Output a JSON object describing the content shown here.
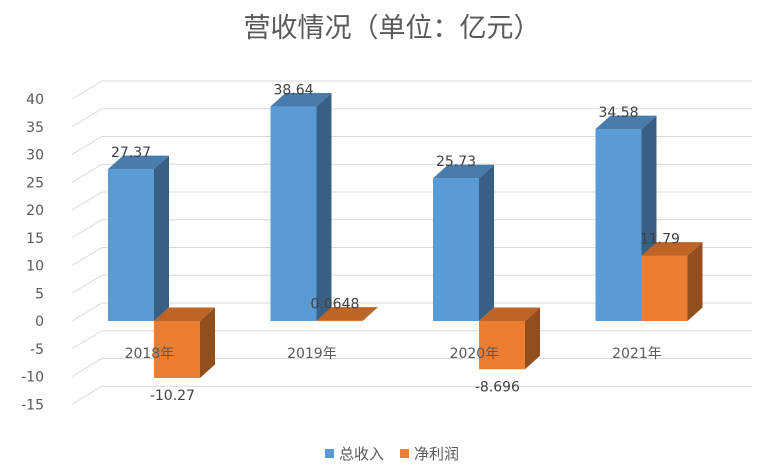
{
  "chart_data": {
    "type": "bar",
    "title": "营收情况（单位：亿元）",
    "categories": [
      "2018年",
      "2019年",
      "2020年",
      "2021年"
    ],
    "series": [
      {
        "name": "总收入",
        "values": [
          27.37,
          38.64,
          25.73,
          34.58
        ],
        "labels": [
          "27.37",
          "38.64",
          "25.73",
          "34.58"
        ],
        "color": "#5B9BD5"
      },
      {
        "name": "净利润",
        "values": [
          -10.27,
          0.0648,
          -8.696,
          11.79
        ],
        "labels": [
          "-10.27",
          "0.0648",
          "-8.696",
          "11.79"
        ],
        "color": "#ED7D31"
      }
    ],
    "ylim": [
      -15,
      40
    ],
    "yticks": [
      -15,
      -10,
      -5,
      0,
      5,
      10,
      15,
      20,
      25,
      30,
      35,
      40
    ],
    "grid": true,
    "legend": "bottom",
    "style": "3d-column"
  }
}
